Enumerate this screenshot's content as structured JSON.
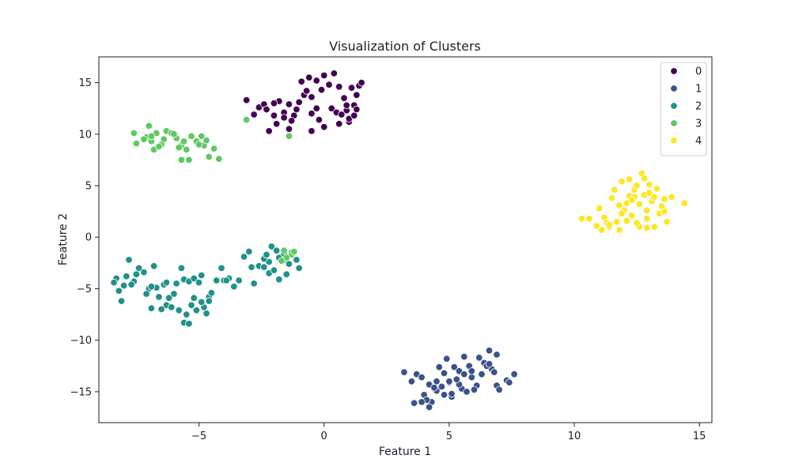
{
  "chart_data": {
    "type": "scatter",
    "title": "Visualization of Clusters",
    "xlabel": "Feature 1",
    "ylabel": "Feature 2",
    "xlim": [
      -9.0,
      15.5
    ],
    "ylim": [
      -18.0,
      17.5
    ],
    "xticks": [
      -5,
      0,
      5,
      10,
      15
    ],
    "xtick_labels": [
      "−5",
      "0",
      "5",
      "10",
      "15"
    ],
    "yticks": [
      15,
      10,
      5,
      0,
      -5,
      -10,
      -15
    ],
    "ytick_labels": [
      "15",
      "10",
      "5",
      "0",
      "−5",
      "−10",
      "−15"
    ],
    "grid": false,
    "legend_position": "top-right",
    "series": [
      {
        "name": "0",
        "color": "#440154",
        "points": [
          [
            -3.1,
            13.3
          ],
          [
            -2.6,
            12.6
          ],
          [
            -2.4,
            12.9
          ],
          [
            -2.0,
            11.8
          ],
          [
            -1.9,
            11.0
          ],
          [
            -1.6,
            12.1
          ],
          [
            -1.4,
            12.9
          ],
          [
            -1.2,
            11.8
          ],
          [
            -1.0,
            13.1
          ],
          [
            -0.8,
            13.8
          ],
          [
            -0.7,
            14.2
          ],
          [
            -0.5,
            13.6
          ],
          [
            -0.3,
            15.2
          ],
          [
            -0.1,
            14.3
          ],
          [
            0.2,
            14.8
          ],
          [
            0.4,
            15.9
          ],
          [
            0.6,
            14.6
          ],
          [
            0.8,
            13.5
          ],
          [
            0.9,
            12.3
          ],
          [
            1.0,
            11.2
          ],
          [
            1.2,
            12.8
          ],
          [
            1.3,
            13.8
          ],
          [
            1.4,
            14.7
          ],
          [
            1.5,
            15.0
          ],
          [
            -2.8,
            11.9
          ],
          [
            -2.2,
            10.3
          ],
          [
            -1.4,
            10.5
          ],
          [
            -0.5,
            10.3
          ],
          [
            0.0,
            10.7
          ],
          [
            0.6,
            11.0
          ],
          [
            1.0,
            11.5
          ],
          [
            -1.8,
            13.2
          ],
          [
            -1.1,
            12.4
          ],
          [
            -0.3,
            12.5
          ],
          [
            0.3,
            12.5
          ],
          [
            0.9,
            12.8
          ],
          [
            1.2,
            11.8
          ],
          [
            -2.3,
            12.4
          ],
          [
            -0.9,
            15.1
          ],
          [
            -0.6,
            15.5
          ],
          [
            0.0,
            15.7
          ],
          [
            0.5,
            12.1
          ],
          [
            1.1,
            14.5
          ],
          [
            -1.6,
            11.6
          ],
          [
            -0.2,
            11.4
          ],
          [
            0.7,
            11.9
          ],
          [
            -2.0,
            13.0
          ],
          [
            -1.3,
            11.3
          ],
          [
            1.3,
            12.4
          ],
          [
            -0.5,
            12.0
          ]
        ]
      },
      {
        "name": "1",
        "color": "#3b528b",
        "points": [
          [
            3.2,
            -13.1
          ],
          [
            3.5,
            -14.0
          ],
          [
            3.7,
            -13.3
          ],
          [
            3.9,
            -13.6
          ],
          [
            4.0,
            -15.3
          ],
          [
            4.2,
            -14.3
          ],
          [
            4.3,
            -16.0
          ],
          [
            4.5,
            -14.9
          ],
          [
            4.6,
            -12.6
          ],
          [
            4.8,
            -13.2
          ],
          [
            4.9,
            -11.8
          ],
          [
            5.0,
            -14.1
          ],
          [
            5.1,
            -15.5
          ],
          [
            5.2,
            -12.6
          ],
          [
            5.4,
            -13.0
          ],
          [
            5.5,
            -14.7
          ],
          [
            5.6,
            -11.6
          ],
          [
            5.8,
            -12.5
          ],
          [
            5.9,
            -13.6
          ],
          [
            6.1,
            -14.4
          ],
          [
            6.2,
            -11.7
          ],
          [
            6.4,
            -12.2
          ],
          [
            6.6,
            -11.0
          ],
          [
            6.7,
            -12.8
          ],
          [
            6.9,
            -14.4
          ],
          [
            7.0,
            -14.8
          ],
          [
            7.3,
            -13.9
          ],
          [
            7.6,
            -13.3
          ],
          [
            3.6,
            -16.1
          ],
          [
            4.2,
            -16.5
          ],
          [
            4.5,
            -14.0
          ],
          [
            4.8,
            -15.3
          ],
          [
            5.1,
            -15.2
          ],
          [
            5.4,
            -14.3
          ],
          [
            5.7,
            -15.0
          ],
          [
            6.0,
            -14.8
          ],
          [
            6.3,
            -13.3
          ],
          [
            6.5,
            -12.5
          ],
          [
            6.8,
            -13.1
          ],
          [
            4.1,
            -15.8
          ],
          [
            4.7,
            -14.5
          ],
          [
            5.3,
            -13.8
          ],
          [
            5.9,
            -13.0
          ],
          [
            6.6,
            -12.3
          ],
          [
            7.4,
            -14.1
          ],
          [
            3.9,
            -16.0
          ],
          [
            4.4,
            -14.6
          ],
          [
            5.0,
            -14.0
          ],
          [
            5.6,
            -13.3
          ],
          [
            6.9,
            -11.4
          ]
        ]
      },
      {
        "name": "2",
        "color": "#21918c",
        "points": [
          [
            -8.3,
            -4.0
          ],
          [
            -8.2,
            -5.2
          ],
          [
            -8.1,
            -6.2
          ],
          [
            -8.0,
            -4.7
          ],
          [
            -7.8,
            -2.2
          ],
          [
            -7.6,
            -4.3
          ],
          [
            -7.4,
            -3.0
          ],
          [
            -7.2,
            -3.4
          ],
          [
            -7.0,
            -5.0
          ],
          [
            -6.8,
            -2.8
          ],
          [
            -6.9,
            -6.9
          ],
          [
            -6.6,
            -5.8
          ],
          [
            -6.4,
            -4.6
          ],
          [
            -6.3,
            -6.6
          ],
          [
            -6.1,
            -6.8
          ],
          [
            -6.0,
            -5.5
          ],
          [
            -5.9,
            -4.5
          ],
          [
            -5.7,
            -3.0
          ],
          [
            -5.6,
            -4.1
          ],
          [
            -5.5,
            -7.5
          ],
          [
            -5.3,
            -6.6
          ],
          [
            -5.2,
            -5.9
          ],
          [
            -5.0,
            -4.4
          ],
          [
            -4.9,
            -3.7
          ],
          [
            -4.8,
            -6.8
          ],
          [
            -4.6,
            -5.8
          ],
          [
            -4.5,
            -5.4
          ],
          [
            -4.3,
            -4.2
          ],
          [
            -4.0,
            -4.2
          ],
          [
            -3.8,
            -4.0
          ],
          [
            -3.6,
            -4.8
          ],
          [
            -3.4,
            -4.2
          ],
          [
            -3.2,
            -1.9
          ],
          [
            -3.0,
            -1.4
          ],
          [
            -2.8,
            -4.5
          ],
          [
            -2.6,
            -2.8
          ],
          [
            -2.4,
            -2.9
          ],
          [
            -2.2,
            -2.4
          ],
          [
            -2.1,
            -0.9
          ],
          [
            -1.9,
            -1.3
          ],
          [
            -1.8,
            -2.0
          ],
          [
            -1.6,
            -2.2
          ],
          [
            -1.5,
            -3.6
          ],
          [
            -1.3,
            -1.5
          ],
          [
            -1.1,
            -2.2
          ],
          [
            -1.0,
            -3.0
          ],
          [
            -8.4,
            -4.4
          ],
          [
            -7.9,
            -3.8
          ],
          [
            -7.5,
            -3.6
          ],
          [
            -7.1,
            -5.5
          ],
          [
            -6.7,
            -4.9
          ],
          [
            -6.2,
            -5.9
          ],
          [
            -5.8,
            -7.1
          ],
          [
            -5.6,
            -8.3
          ],
          [
            -5.4,
            -8.4
          ],
          [
            -5.1,
            -7.1
          ],
          [
            -4.9,
            -6.3
          ],
          [
            -4.7,
            -7.4
          ],
          [
            -6.5,
            -7.0
          ],
          [
            -7.7,
            -4.6
          ],
          [
            -6.9,
            -4.8
          ],
          [
            -6.3,
            -4.4
          ],
          [
            -5.4,
            -4.3
          ],
          [
            -4.6,
            -6.2
          ],
          [
            -3.9,
            -4.2
          ],
          [
            -2.2,
            -3.5
          ],
          [
            -2.0,
            -3.2
          ],
          [
            -1.8,
            -4.1
          ],
          [
            -2.4,
            -2.1
          ],
          [
            -2.9,
            -2.9
          ],
          [
            -1.4,
            -2.6
          ],
          [
            -1.6,
            -1.6
          ],
          [
            -2.3,
            -1.7
          ],
          [
            -5.2,
            -4.0
          ],
          [
            -4.1,
            -3.0
          ]
        ]
      },
      {
        "name": "3",
        "color": "#5ec962",
        "points": [
          [
            -7.6,
            10.1
          ],
          [
            -7.5,
            9.1
          ],
          [
            -7.1,
            9.7
          ],
          [
            -7.0,
            10.8
          ],
          [
            -6.9,
            9.3
          ],
          [
            -6.8,
            8.5
          ],
          [
            -6.7,
            10.1
          ],
          [
            -6.5,
            9.0
          ],
          [
            -6.3,
            10.3
          ],
          [
            -6.1,
            10.1
          ],
          [
            -5.9,
            9.6
          ],
          [
            -5.7,
            8.9
          ],
          [
            -5.6,
            9.3
          ],
          [
            -5.5,
            8.5
          ],
          [
            -5.4,
            7.5
          ],
          [
            -5.3,
            9.8
          ],
          [
            -5.1,
            9.3
          ],
          [
            -4.9,
            9.8
          ],
          [
            -4.8,
            8.9
          ],
          [
            -4.6,
            7.8
          ],
          [
            -4.4,
            8.6
          ],
          [
            -4.2,
            7.6
          ],
          [
            -7.2,
            9.5
          ],
          [
            -6.6,
            8.8
          ],
          [
            -6.0,
            10.0
          ],
          [
            -5.7,
            7.5
          ],
          [
            -5.0,
            9.0
          ],
          [
            -4.7,
            9.4
          ],
          [
            -3.1,
            11.4
          ],
          [
            -1.4,
            9.8
          ],
          [
            -1.6,
            -1.3
          ],
          [
            -1.3,
            -1.7
          ],
          [
            -1.5,
            -2.0
          ],
          [
            -1.2,
            -1.4
          ],
          [
            -1.7,
            -2.3
          ],
          [
            -6.9,
            9.8
          ],
          [
            -6.4,
            9.5
          ],
          [
            -5.8,
            8.7
          ]
        ]
      },
      {
        "name": "4",
        "color": "#fde725",
        "points": [
          [
            10.3,
            1.8
          ],
          [
            10.6,
            1.8
          ],
          [
            10.9,
            1.1
          ],
          [
            11.0,
            2.8
          ],
          [
            11.1,
            0.7
          ],
          [
            11.2,
            1.9
          ],
          [
            11.3,
            1.4
          ],
          [
            11.4,
            1.0
          ],
          [
            11.6,
            4.6
          ],
          [
            11.7,
            1.5
          ],
          [
            11.8,
            0.7
          ],
          [
            11.9,
            5.4
          ],
          [
            12.0,
            2.6
          ],
          [
            12.1,
            3.3
          ],
          [
            12.2,
            5.6
          ],
          [
            12.3,
            2.1
          ],
          [
            12.4,
            4.6
          ],
          [
            12.5,
            5.0
          ],
          [
            12.6,
            3.2
          ],
          [
            12.7,
            6.2
          ],
          [
            12.8,
            4.1
          ],
          [
            12.9,
            2.6
          ],
          [
            13.0,
            5.1
          ],
          [
            13.1,
            3.5
          ],
          [
            13.2,
            1.0
          ],
          [
            13.3,
            4.7
          ],
          [
            13.4,
            2.3
          ],
          [
            13.5,
            3.0
          ],
          [
            13.6,
            3.7
          ],
          [
            13.7,
            1.5
          ],
          [
            13.9,
            3.9
          ],
          [
            14.4,
            3.3
          ],
          [
            11.5,
            3.8
          ],
          [
            11.8,
            3.1
          ],
          [
            12.1,
            1.6
          ],
          [
            12.6,
            1.0
          ],
          [
            12.9,
            1.8
          ],
          [
            13.0,
            4.3
          ],
          [
            12.2,
            4.0
          ],
          [
            11.4,
            1.2
          ],
          [
            12.4,
            3.9
          ],
          [
            12.8,
            5.7
          ],
          [
            13.6,
            2.5
          ],
          [
            11.9,
            2.3
          ],
          [
            12.5,
            1.4
          ],
          [
            12.3,
            3.6
          ],
          [
            12.9,
            0.9
          ],
          [
            13.2,
            3.9
          ]
        ]
      }
    ]
  }
}
